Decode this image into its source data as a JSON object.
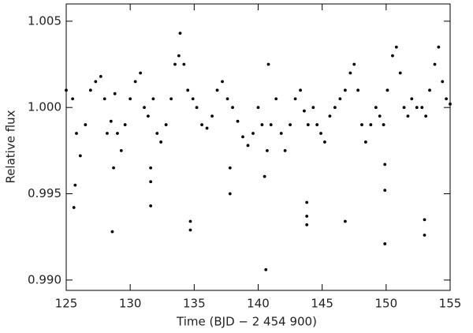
{
  "chart_data": {
    "type": "scatter",
    "xlabel": "Time (BJD − 2 454 900)",
    "ylabel": "Relative flux",
    "color": "#000000",
    "xlim": [
      125,
      155
    ],
    "ylim": [
      0.9894,
      1.006
    ],
    "xticks": [
      125,
      130,
      135,
      140,
      145,
      150,
      155
    ],
    "yticks": [
      {
        "value": 0.99,
        "label": "0.990"
      },
      {
        "value": 0.995,
        "label": "0.995"
      },
      {
        "value": 1.0,
        "label": "1.000"
      },
      {
        "value": 1.005,
        "label": "1.005"
      }
    ],
    "x": [
      125.0,
      125.5,
      125.8,
      126.1,
      126.5,
      126.9,
      127.3,
      127.7,
      128.0,
      128.2,
      128.5,
      128.8,
      129.0,
      129.3,
      129.6,
      130.0,
      130.4,
      130.8,
      131.1,
      131.4,
      131.8,
      132.1,
      132.4,
      132.8,
      133.2,
      133.5,
      133.8,
      134.2,
      134.5,
      134.9,
      135.2,
      135.6,
      136.0,
      136.4,
      136.8,
      137.2,
      137.6,
      138.0,
      138.4,
      138.8,
      139.2,
      139.6,
      140.0,
      140.3,
      140.7,
      141.0,
      141.4,
      141.8,
      142.1,
      142.5,
      142.9,
      143.3,
      143.6,
      143.9,
      144.3,
      144.6,
      144.9,
      145.2,
      145.6,
      146.0,
      146.4,
      146.8,
      147.2,
      147.5,
      147.8,
      148.1,
      148.4,
      148.8,
      149.2,
      149.5,
      149.8,
      150.1,
      150.5,
      150.8,
      151.1,
      151.4,
      151.7,
      152.0,
      152.4,
      152.8,
      153.1,
      153.4,
      153.8,
      154.1,
      154.4,
      154.7,
      155.0,
      125.7,
      125.6,
      128.6,
      128.7,
      131.6,
      131.6,
      131.6,
      134.7,
      134.7,
      137.8,
      137.8,
      140.5,
      140.6,
      140.8,
      143.8,
      143.8,
      143.8,
      146.8,
      149.9,
      149.9,
      149.9,
      153.0,
      153.0,
      133.9
    ],
    "values": [
      1.001,
      1.0005,
      0.9985,
      0.9972,
      0.999,
      1.001,
      1.0015,
      1.0018,
      1.0005,
      0.9985,
      0.9992,
      1.0008,
      0.9985,
      0.9975,
      0.999,
      1.0005,
      1.0015,
      1.002,
      1.0,
      0.9995,
      1.0005,
      0.9985,
      0.998,
      0.999,
      1.0005,
      1.0025,
      1.003,
      1.0025,
      1.001,
      1.0005,
      1.0,
      0.999,
      0.9988,
      0.9995,
      1.001,
      1.0015,
      1.0005,
      1.0,
      0.9992,
      0.9983,
      0.9978,
      0.9985,
      1.0,
      0.999,
      0.9975,
      0.999,
      1.0005,
      0.9985,
      0.9975,
      0.999,
      1.0005,
      1.001,
      0.9998,
      0.999,
      1.0,
      0.999,
      0.9985,
      0.998,
      0.9995,
      1.0,
      1.0005,
      1.001,
      1.002,
      1.0025,
      1.001,
      0.999,
      0.998,
      0.999,
      1.0,
      0.9995,
      0.999,
      1.001,
      1.003,
      1.0035,
      1.002,
      1.0,
      0.9995,
      1.0005,
      1.0,
      1.0,
      0.9995,
      1.001,
      1.0025,
      1.0035,
      1.0015,
      1.0005,
      1.0002,
      0.9955,
      0.9942,
      0.9928,
      0.9965,
      0.9965,
      0.9957,
      0.9943,
      0.9934,
      0.9929,
      0.9965,
      0.995,
      0.996,
      0.9906,
      1.0025,
      0.9945,
      0.9937,
      0.9932,
      0.9934,
      0.9967,
      0.9952,
      0.9921,
      0.9935,
      0.9926,
      1.0043
    ]
  }
}
